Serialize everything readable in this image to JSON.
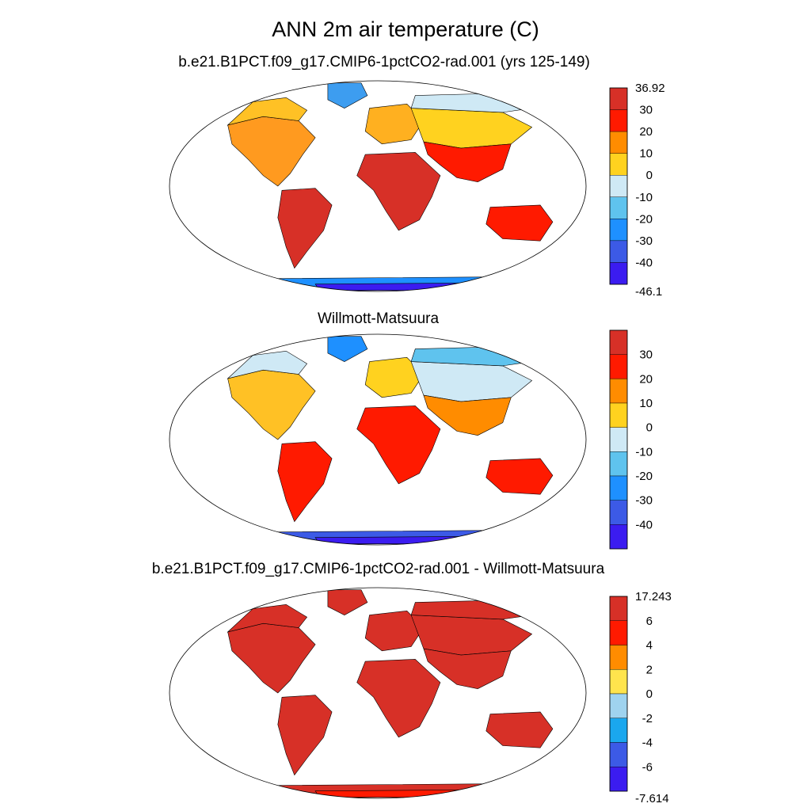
{
  "page": {
    "title": "ANN 2m air temperature (C)"
  },
  "panels": [
    {
      "title": "b.e21.B1PCT.f09_g17.CMIP6-1pctCO2-rad.001 (yrs 125-149)",
      "colorbar": {
        "top_label": "36.92",
        "bottom_label": "-46.1",
        "ticks": [
          "30",
          "20",
          "10",
          "0",
          "-10",
          "-20",
          "-30",
          "-40"
        ],
        "colors": [
          "#d73027",
          "#ff1a00",
          "#ff8c00",
          "#ffd21f",
          "#cfe9f5",
          "#5fc3ee",
          "#1e90ff",
          "#3c5ae6",
          "#3b1cf0"
        ]
      },
      "regions": {
        "north_america": "#ff9a1f",
        "canada_north": "#ffc125",
        "greenland": "#3d9df0",
        "south_america": "#d73027",
        "africa": "#d73027",
        "europe": "#ffb020",
        "siberia": "#ffd21f",
        "arctic_russia": "#cfe9f5",
        "asia_south": "#ff1a00",
        "australia": "#ff1a00",
        "antarctica": "#1e90ff",
        "antarctica_interior": "#3b1cf0"
      }
    },
    {
      "title": "Willmott-Matsuura",
      "colorbar": {
        "top_label": "",
        "bottom_label": "",
        "ticks": [
          "30",
          "20",
          "10",
          "0",
          "-10",
          "-20",
          "-30",
          "-40"
        ],
        "colors": [
          "#d73027",
          "#ff1a00",
          "#ff8c00",
          "#ffd21f",
          "#cfe9f5",
          "#5fc3ee",
          "#1e90ff",
          "#3c5ae6",
          "#3b1cf0"
        ]
      },
      "regions": {
        "north_america": "#ffc125",
        "canada_north": "#cfe9f5",
        "greenland": "#1e90ff",
        "south_america": "#ff1a00",
        "africa": "#ff1a00",
        "europe": "#ffd21f",
        "siberia": "#cfe9f5",
        "arctic_russia": "#5fc3ee",
        "asia_south": "#ff8c00",
        "australia": "#ff1a00",
        "antarctica": "#3c5ae6",
        "antarctica_interior": "#3b1cf0"
      }
    },
    {
      "title": "b.e21.B1PCT.f09_g17.CMIP6-1pctCO2-rad.001 - Willmott-Matsuura",
      "colorbar": {
        "top_label": "17.243",
        "bottom_label": "-7.614",
        "ticks": [
          "6",
          "4",
          "2",
          "0",
          "-2",
          "-4",
          "-6"
        ],
        "colors": [
          "#d73027",
          "#ff1a00",
          "#ff8c00",
          "#ffe44d",
          "#9fd3ef",
          "#1aa7ee",
          "#3c5ae6",
          "#3b1cf0"
        ]
      },
      "regions": {
        "north_america": "#d73027",
        "canada_north": "#d73027",
        "greenland": "#d73027",
        "south_america": "#d73027",
        "africa": "#d73027",
        "europe": "#d73027",
        "siberia": "#d73027",
        "arctic_russia": "#d73027",
        "asia_south": "#d73027",
        "australia": "#d73027",
        "antarctica": "#d73027",
        "antarctica_interior": "#ff1a00"
      }
    }
  ]
}
